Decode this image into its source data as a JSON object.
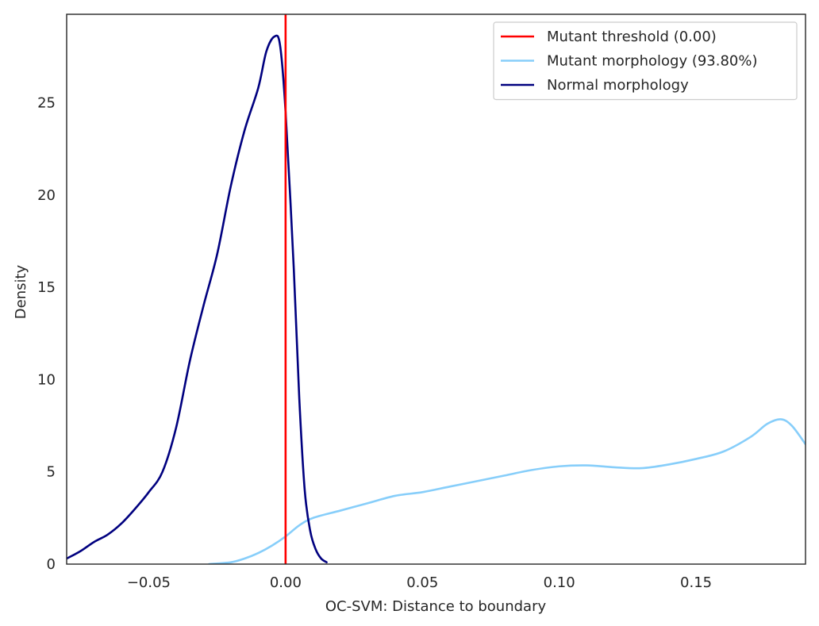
{
  "chart_data": {
    "type": "line",
    "title": "",
    "xlabel": "OC-SVM: Distance to boundary",
    "ylabel": "Density",
    "xlim": [
      -0.08,
      0.19
    ],
    "ylim": [
      0,
      29.8
    ],
    "xticks": [
      -0.05,
      0.0,
      0.05,
      0.1,
      0.15
    ],
    "xtick_labels": [
      "−0.05",
      "0.00",
      "0.05",
      "0.10",
      "0.15"
    ],
    "yticks": [
      0,
      5,
      10,
      15,
      20,
      25
    ],
    "ytick_labels": [
      "0",
      "5",
      "10",
      "15",
      "20",
      "25"
    ],
    "grid": false,
    "legend_position": "top-right",
    "threshold": {
      "name": "Mutant threshold (0.00)",
      "x": 0.0,
      "color": "#ff0000"
    },
    "series": [
      {
        "name": "Mutant morphology (93.80%)",
        "color": "#87cefa",
        "points": [
          [
            -0.028,
            0.0
          ],
          [
            -0.02,
            0.1
          ],
          [
            -0.015,
            0.3
          ],
          [
            -0.01,
            0.6
          ],
          [
            -0.005,
            1.0
          ],
          [
            0.0,
            1.5
          ],
          [
            0.005,
            2.1
          ],
          [
            0.01,
            2.5
          ],
          [
            0.02,
            2.9
          ],
          [
            0.03,
            3.3
          ],
          [
            0.04,
            3.7
          ],
          [
            0.05,
            3.9
          ],
          [
            0.06,
            4.2
          ],
          [
            0.07,
            4.5
          ],
          [
            0.08,
            4.8
          ],
          [
            0.09,
            5.1
          ],
          [
            0.1,
            5.3
          ],
          [
            0.11,
            5.35
          ],
          [
            0.12,
            5.25
          ],
          [
            0.13,
            5.2
          ],
          [
            0.14,
            5.4
          ],
          [
            0.15,
            5.7
          ],
          [
            0.16,
            6.1
          ],
          [
            0.17,
            6.9
          ],
          [
            0.176,
            7.6
          ],
          [
            0.181,
            7.85
          ],
          [
            0.185,
            7.5
          ],
          [
            0.19,
            6.5
          ]
        ]
      },
      {
        "name": "Normal morphology",
        "color": "#00007f",
        "points": [
          [
            -0.08,
            0.3
          ],
          [
            -0.075,
            0.7
          ],
          [
            -0.07,
            1.2
          ],
          [
            -0.065,
            1.6
          ],
          [
            -0.06,
            2.2
          ],
          [
            -0.055,
            3.0
          ],
          [
            -0.05,
            3.9
          ],
          [
            -0.045,
            5.0
          ],
          [
            -0.04,
            7.4
          ],
          [
            -0.035,
            11.0
          ],
          [
            -0.03,
            14.0
          ],
          [
            -0.025,
            16.8
          ],
          [
            -0.02,
            20.5
          ],
          [
            -0.015,
            23.5
          ],
          [
            -0.01,
            25.8
          ],
          [
            -0.007,
            27.8
          ],
          [
            -0.004,
            28.6
          ],
          [
            -0.002,
            28.1
          ],
          [
            0.0,
            24.5
          ],
          [
            0.003,
            16.0
          ],
          [
            0.005,
            9.0
          ],
          [
            0.007,
            4.0
          ],
          [
            0.009,
            1.8
          ],
          [
            0.011,
            0.8
          ],
          [
            0.013,
            0.3
          ],
          [
            0.015,
            0.1
          ]
        ]
      }
    ]
  }
}
